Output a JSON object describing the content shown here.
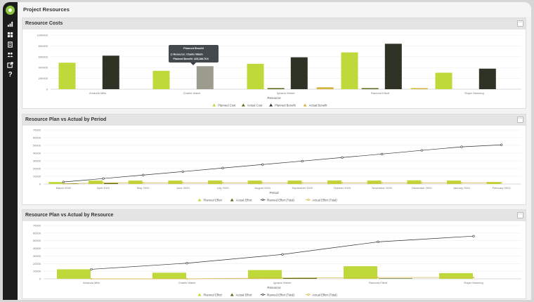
{
  "page": {
    "title": "Project Resources"
  },
  "sidebar": {
    "icons": [
      "analytics-icon",
      "dashboard-icon",
      "list-icon",
      "users-icon",
      "export-icon",
      "help-icon"
    ],
    "help_label": "?"
  },
  "panels": {
    "costs": {
      "title": "Resource Costs",
      "menu": "···"
    },
    "period": {
      "title": "Resource Plan vs Actual by Period",
      "menu": "···"
    },
    "resource": {
      "title": "Resource Plan vs Actual by Resource",
      "menu": "···"
    }
  },
  "tooltip": {
    "title": "Planned Benefit",
    "line1": "Resource: Charlie Walsh",
    "line2": "Planned Benefit: 425,188.78 €"
  },
  "colors": {
    "planned": "#c0d93a",
    "actual": "#5a6b1f",
    "dark": "#2e3325",
    "gold": "#d4b43a",
    "line": "#333333"
  },
  "chart_data": [
    {
      "id": "costs",
      "type": "bar",
      "categories": [
        "Amanda Mills",
        "Charlie Walsh",
        "Ignacio Weber",
        "Ramona Elliott",
        "Roger Manning"
      ],
      "series": [
        {
          "name": "Planned Cost",
          "values": [
            490000,
            340000,
            470000,
            680000,
            305000
          ]
        },
        {
          "name": "Actual Cost",
          "values": [
            0,
            0,
            20000,
            15000,
            0
          ]
        },
        {
          "name": "Planned Benefit",
          "values": [
            620000,
            425188.78,
            590000,
            840000,
            380000
          ]
        },
        {
          "name": "Actual Benefit",
          "values": [
            0,
            0,
            35000,
            10000,
            0
          ]
        }
      ],
      "xlabel": "Resource",
      "ylim": [
        0,
        1000000
      ],
      "yticks": [
        "0",
        "200000",
        "400000",
        "600000",
        "800000",
        "1000000"
      ],
      "highlight": {
        "category": 1,
        "series": 2
      }
    },
    {
      "id": "period",
      "type": "bar+line",
      "categories": [
        "March 2020",
        "April 2020",
        "May 2020",
        "June 2020",
        "July 2020",
        "August 2020",
        "September 2020",
        "October 2020",
        "November 2020",
        "December 2020",
        "January 2021",
        "February 2021"
      ],
      "series": [
        {
          "name": "Planned Effort",
          "values": [
            2600,
            4500,
            4500,
            4500,
            4600,
            4500,
            4500,
            4600,
            4500,
            4800,
            4500,
            2600
          ]
        },
        {
          "name": "Actual Effort",
          "values": [
            400,
            1200,
            0,
            0,
            0,
            0,
            0,
            0,
            0,
            0,
            0,
            0
          ]
        },
        {
          "name": "Planned Effort (Total)",
          "values": [
            2600,
            7100,
            11600,
            16100,
            20700,
            25200,
            29700,
            34300,
            38800,
            43600,
            48100,
            50700
          ]
        },
        {
          "name": "Actual Effort (Total)",
          "values": [
            400,
            1600,
            1600,
            1600,
            1600,
            1600,
            1600,
            1600,
            1600,
            1600,
            1600,
            1600
          ]
        }
      ],
      "xlabel": "Period",
      "ylim": [
        0,
        70000
      ],
      "yticks": [
        "0",
        "10000",
        "20000",
        "30000",
        "40000",
        "50000",
        "60000",
        "70000"
      ]
    },
    {
      "id": "resource",
      "type": "bar+line",
      "categories": [
        "Amanda Mills",
        "Charlie Walsh",
        "Ignacio Weber",
        "Ramona Elliott",
        "Roger Manning"
      ],
      "series": [
        {
          "name": "Planned Effort",
          "values": [
            12500,
            8000,
            11500,
            16500,
            7500
          ]
        },
        {
          "name": "Actual Effort",
          "values": [
            0,
            0,
            1200,
            600,
            0
          ]
        },
        {
          "name": "Planned Effort (Total)",
          "values": [
            12500,
            20500,
            32000,
            48500,
            56000
          ]
        },
        {
          "name": "Actual Effort (Total)",
          "values": [
            0,
            0,
            1200,
            1800,
            1800
          ]
        }
      ],
      "xlabel": "Resource",
      "ylim": [
        0,
        70000
      ],
      "yticks": [
        "0",
        "10000",
        "20000",
        "30000",
        "40000",
        "50000",
        "60000",
        "70000"
      ]
    }
  ]
}
